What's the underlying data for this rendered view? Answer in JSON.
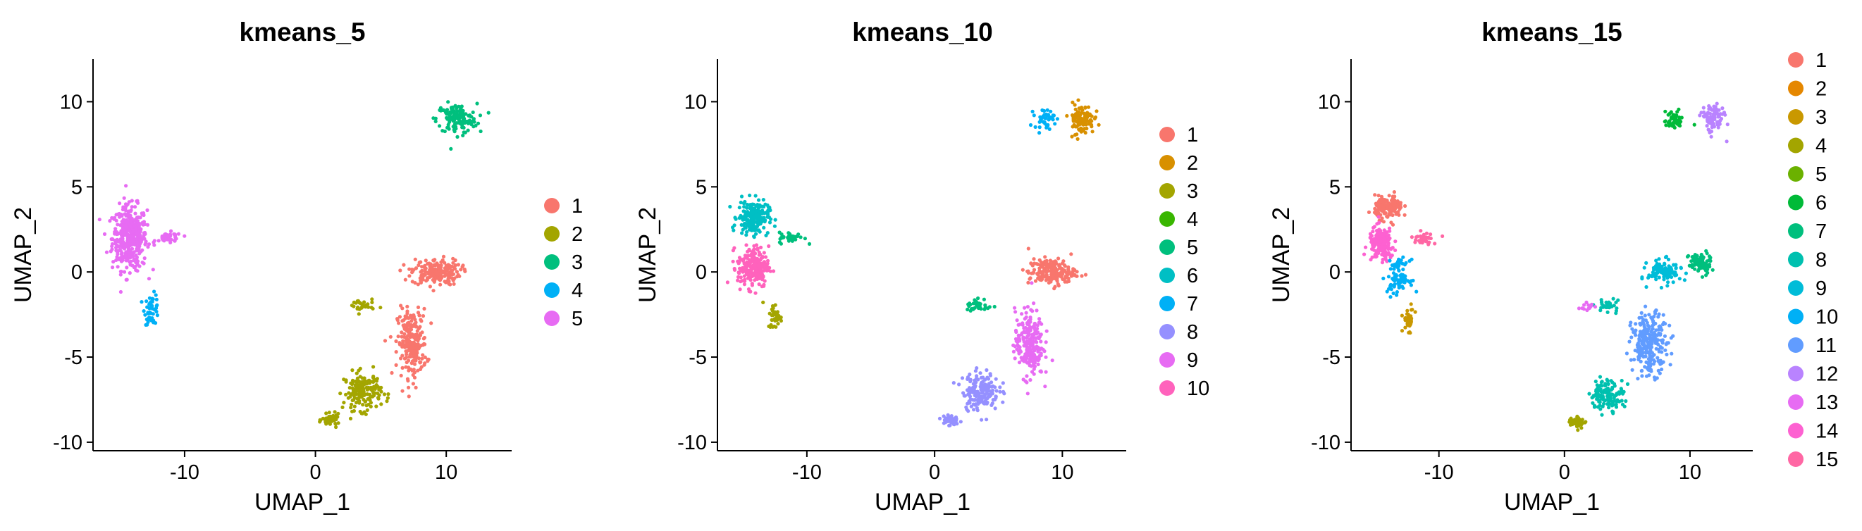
{
  "chart_data": [
    {
      "type": "scatter",
      "title": "kmeans_5",
      "xlabel": "UMAP_1",
      "ylabel": "UMAP_2",
      "xlim": [
        -17,
        15
      ],
      "ylim": [
        -10.5,
        12.5
      ],
      "xticks": [
        -10,
        0,
        10
      ],
      "yticks": [
        -10,
        -5,
        0,
        5,
        10
      ],
      "xtick_labels": [
        "-10",
        "0",
        "10"
      ],
      "ytick_labels": [
        "-10",
        "-5",
        "0",
        "5",
        "10"
      ],
      "legend": [
        "1",
        "2",
        "3",
        "4",
        "5"
      ],
      "colors": [
        "#F8766D",
        "#A3A500",
        "#00BF7D",
        "#00B0F6",
        "#E76BF3"
      ],
      "clusters": [
        {
          "cluster": "5",
          "x": -14.2,
          "y": 2.0,
          "sx": 1.2,
          "sy": 1.7,
          "n": 420
        },
        {
          "cluster": "5",
          "x": -11.2,
          "y": 2.0,
          "sx": 0.9,
          "sy": 0.3,
          "n": 40
        },
        {
          "cluster": "4",
          "x": -12.5,
          "y": -2.2,
          "sx": 0.5,
          "sy": 0.8,
          "n": 50
        },
        {
          "cluster": "3",
          "x": 10.8,
          "y": 9.0,
          "sx": 1.4,
          "sy": 0.8,
          "n": 140
        },
        {
          "cluster": "1",
          "x": 9.2,
          "y": 0.0,
          "sx": 1.7,
          "sy": 0.7,
          "n": 190
        },
        {
          "cluster": "1",
          "x": 7.4,
          "y": -4.2,
          "sx": 1.0,
          "sy": 1.8,
          "n": 240
        },
        {
          "cluster": "2",
          "x": 3.6,
          "y": -7.0,
          "sx": 1.3,
          "sy": 1.0,
          "n": 170
        },
        {
          "cluster": "2",
          "x": 1.2,
          "y": -8.7,
          "sx": 0.6,
          "sy": 0.3,
          "n": 50
        },
        {
          "cluster": "2",
          "x": 3.5,
          "y": -2.0,
          "sx": 0.9,
          "sy": 0.4,
          "n": 30
        }
      ]
    },
    {
      "type": "scatter",
      "title": "kmeans_10",
      "xlabel": "UMAP_1",
      "ylabel": "UMAP_2",
      "xlim": [
        -17,
        15
      ],
      "ylim": [
        -10.5,
        12.5
      ],
      "xticks": [
        -10,
        0,
        10
      ],
      "yticks": [
        -10,
        -5,
        0,
        5,
        10
      ],
      "xtick_labels": [
        "-10",
        "0",
        "10"
      ],
      "ytick_labels": [
        "-10",
        "-5",
        "0",
        "5",
        "10"
      ],
      "legend": [
        "1",
        "2",
        "3",
        "4",
        "5",
        "6",
        "7",
        "8",
        "9",
        "10"
      ],
      "colors": [
        "#F8766D",
        "#D89000",
        "#A3A500",
        "#39B600",
        "#00BF7D",
        "#00BFC4",
        "#00B0F6",
        "#9590FF",
        "#E76BF3",
        "#FF62BC"
      ],
      "clusters": [
        {
          "cluster": "6",
          "x": -14.2,
          "y": 3.2,
          "sx": 1.1,
          "sy": 0.9,
          "n": 200
        },
        {
          "cluster": "10",
          "x": -14.2,
          "y": 0.3,
          "sx": 1.1,
          "sy": 1.1,
          "n": 230
        },
        {
          "cluster": "5",
          "x": -11.2,
          "y": 2.0,
          "sx": 0.9,
          "sy": 0.3,
          "n": 40
        },
        {
          "cluster": "3",
          "x": -12.5,
          "y": -2.6,
          "sx": 0.5,
          "sy": 0.7,
          "n": 40
        },
        {
          "cluster": "2",
          "x": 11.5,
          "y": 9.0,
          "sx": 0.9,
          "sy": 0.8,
          "n": 110
        },
        {
          "cluster": "7",
          "x": 8.6,
          "y": 9.0,
          "sx": 0.7,
          "sy": 0.5,
          "n": 40
        },
        {
          "cluster": "1",
          "x": 9.2,
          "y": 0.0,
          "sx": 1.7,
          "sy": 0.7,
          "n": 190
        },
        {
          "cluster": "9",
          "x": 7.4,
          "y": -4.2,
          "sx": 1.0,
          "sy": 1.8,
          "n": 240
        },
        {
          "cluster": "8",
          "x": 3.6,
          "y": -7.0,
          "sx": 1.3,
          "sy": 1.0,
          "n": 170
        },
        {
          "cluster": "8",
          "x": 1.2,
          "y": -8.7,
          "sx": 0.6,
          "sy": 0.3,
          "n": 50
        },
        {
          "cluster": "5",
          "x": 3.5,
          "y": -2.0,
          "sx": 0.9,
          "sy": 0.4,
          "n": 30
        }
      ]
    },
    {
      "type": "scatter",
      "title": "kmeans_15",
      "xlabel": "UMAP_1",
      "ylabel": "UMAP_2",
      "xlim": [
        -17,
        15
      ],
      "ylim": [
        -10.5,
        12.5
      ],
      "xticks": [
        -10,
        0,
        10
      ],
      "yticks": [
        -10,
        -5,
        0,
        5,
        10
      ],
      "xtick_labels": [
        "-10",
        "0",
        "10"
      ],
      "ytick_labels": [
        "-10",
        "-5",
        "0",
        "5",
        "10"
      ],
      "legend": [
        "1",
        "2",
        "3",
        "4",
        "5",
        "6",
        "7",
        "8",
        "9",
        "10",
        "11",
        "12",
        "13",
        "14",
        "15"
      ],
      "colors": [
        "#F8766D",
        "#E58700",
        "#C99800",
        "#A3A500",
        "#6BB100",
        "#00BA38",
        "#00BF7D",
        "#00C0AF",
        "#00BCD8",
        "#00B0F6",
        "#619CFF",
        "#B983FF",
        "#E76BF3",
        "#FD61D1",
        "#FF67A4"
      ],
      "clusters": [
        {
          "cluster": "1",
          "x": -14.0,
          "y": 3.8,
          "sx": 1.0,
          "sy": 0.6,
          "n": 150
        },
        {
          "cluster": "14",
          "x": -14.6,
          "y": 1.6,
          "sx": 0.9,
          "sy": 0.9,
          "n": 170
        },
        {
          "cluster": "15",
          "x": -11.2,
          "y": 2.0,
          "sx": 0.9,
          "sy": 0.3,
          "n": 40
        },
        {
          "cluster": "10",
          "x": -13.2,
          "y": -0.3,
          "sx": 0.8,
          "sy": 0.9,
          "n": 90
        },
        {
          "cluster": "3",
          "x": -12.4,
          "y": -2.8,
          "sx": 0.4,
          "sy": 0.6,
          "n": 40
        },
        {
          "cluster": "12",
          "x": 11.8,
          "y": 9.0,
          "sx": 0.8,
          "sy": 0.8,
          "n": 100
        },
        {
          "cluster": "6",
          "x": 8.7,
          "y": 8.9,
          "sx": 0.7,
          "sy": 0.5,
          "n": 45
        },
        {
          "cluster": "9",
          "x": 8.0,
          "y": 0.0,
          "sx": 1.2,
          "sy": 0.6,
          "n": 110
        },
        {
          "cluster": "7",
          "x": 10.8,
          "y": 0.5,
          "sx": 0.8,
          "sy": 0.6,
          "n": 80
        },
        {
          "cluster": "11",
          "x": 6.8,
          "y": -4.2,
          "sx": 1.3,
          "sy": 1.6,
          "n": 240
        },
        {
          "cluster": "8",
          "x": 3.4,
          "y": -7.2,
          "sx": 1.2,
          "sy": 0.8,
          "n": 130
        },
        {
          "cluster": "4",
          "x": 1.0,
          "y": -8.8,
          "sx": 0.6,
          "sy": 0.3,
          "n": 50
        },
        {
          "cluster": "8",
          "x": 3.5,
          "y": -2.0,
          "sx": 0.9,
          "sy": 0.4,
          "n": 30
        },
        {
          "cluster": "13",
          "x": 1.8,
          "y": -2.0,
          "sx": 0.5,
          "sy": 0.3,
          "n": 12
        }
      ]
    }
  ]
}
